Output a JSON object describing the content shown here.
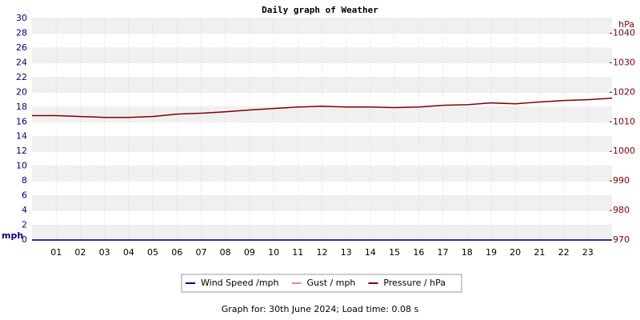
{
  "chart_data": {
    "type": "line",
    "title": "Daily graph of Weather",
    "x": [
      0,
      1,
      2,
      3,
      4,
      5,
      6,
      7,
      8,
      9,
      10,
      11,
      12,
      13,
      14,
      15,
      16,
      17,
      18,
      19,
      20,
      21,
      22,
      23,
      24
    ],
    "xlim": [
      0,
      24
    ],
    "xticks": [
      {
        "value": 1,
        "label": "01"
      },
      {
        "value": 2,
        "label": "02"
      },
      {
        "value": 3,
        "label": "03"
      },
      {
        "value": 4,
        "label": "04"
      },
      {
        "value": 5,
        "label": "05"
      },
      {
        "value": 6,
        "label": "06"
      },
      {
        "value": 7,
        "label": "07"
      },
      {
        "value": 8,
        "label": "08"
      },
      {
        "value": 9,
        "label": "09"
      },
      {
        "value": 10,
        "label": "10"
      },
      {
        "value": 11,
        "label": "11"
      },
      {
        "value": 12,
        "label": "12"
      },
      {
        "value": 13,
        "label": "13"
      },
      {
        "value": 14,
        "label": "14"
      },
      {
        "value": 15,
        "label": "15"
      },
      {
        "value": 16,
        "label": "16"
      },
      {
        "value": 17,
        "label": "17"
      },
      {
        "value": 18,
        "label": "18"
      },
      {
        "value": 19,
        "label": "19"
      },
      {
        "value": 20,
        "label": "20"
      },
      {
        "value": 21,
        "label": "21"
      },
      {
        "value": 22,
        "label": "22"
      },
      {
        "value": 23,
        "label": "23"
      }
    ],
    "ylabel": "mph",
    "ylim": [
      0,
      30
    ],
    "yticks": [
      0,
      2,
      4,
      6,
      8,
      10,
      12,
      14,
      16,
      18,
      20,
      22,
      24,
      26,
      28,
      30
    ],
    "y2label": "hPa",
    "y2lim": [
      970,
      1045
    ],
    "y2ticks": [
      970,
      980,
      990,
      1000,
      1010,
      1020,
      1030,
      1040
    ],
    "grid": true,
    "series": [
      {
        "name": "Gust / mph",
        "color": "#f080a0",
        "values": [
          0,
          0,
          0,
          0,
          0,
          0,
          0,
          0,
          0,
          0,
          0,
          0,
          0,
          0,
          0,
          0,
          0,
          0,
          0,
          0,
          0,
          0,
          0,
          0,
          0
        ]
      },
      {
        "name": "Wind Speed /mph",
        "color": "#000080",
        "values": [
          0,
          0,
          0,
          0,
          0,
          0,
          0,
          0,
          0,
          0,
          0,
          0,
          0,
          0,
          0,
          0,
          0,
          0,
          0,
          0,
          0,
          0,
          0,
          0,
          0
        ]
      },
      {
        "name": "Pressure / hPa",
        "color": "#800000",
        "axis": "y2",
        "values": [
          1012.1,
          1012.1,
          1011.8,
          1011.5,
          1011.5,
          1011.8,
          1012.6,
          1012.9,
          1013.4,
          1014.0,
          1014.5,
          1015.0,
          1015.3,
          1015.0,
          1015.0,
          1014.8,
          1015.0,
          1015.6,
          1015.8,
          1016.4,
          1016.1,
          1016.7,
          1017.2,
          1017.5,
          1018.0
        ]
      }
    ],
    "legend_order": [
      1,
      0,
      2
    ],
    "footer": "Graph for: 30th June 2024; Load time: 0.08 s"
  }
}
